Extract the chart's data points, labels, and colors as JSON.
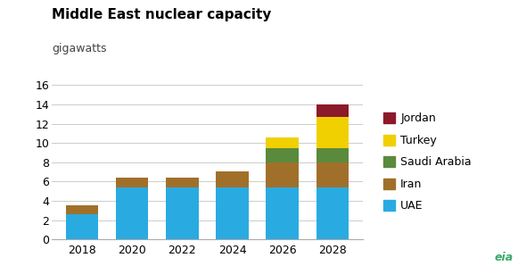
{
  "title": "Middle East nuclear capacity",
  "subtitle": "gigawatts",
  "years": [
    2018,
    2020,
    2022,
    2024,
    2026,
    2028
  ],
  "series": {
    "UAE": [
      2.6,
      5.4,
      5.4,
      5.4,
      5.4,
      5.4
    ],
    "Iran": [
      0.9,
      1.0,
      1.0,
      1.7,
      2.6,
      2.6
    ],
    "Saudi Arabia": [
      0.0,
      0.0,
      0.0,
      0.0,
      1.5,
      1.5
    ],
    "Turkey": [
      0.0,
      0.0,
      0.0,
      0.0,
      1.1,
      3.2
    ],
    "Jordan": [
      0.0,
      0.0,
      0.0,
      0.0,
      0.0,
      1.3
    ]
  },
  "colors": {
    "UAE": "#29abe2",
    "Iran": "#a0702a",
    "Saudi Arabia": "#5a8a3c",
    "Turkey": "#f0d000",
    "Jordan": "#8b1a2a"
  },
  "ylim": [
    0,
    16
  ],
  "yticks": [
    0,
    2,
    4,
    6,
    8,
    10,
    12,
    14,
    16
  ],
  "legend_order": [
    "Jordan",
    "Turkey",
    "Saudi Arabia",
    "Iran",
    "UAE"
  ],
  "background_color": "#ffffff",
  "title_fontsize": 11,
  "subtitle_fontsize": 9,
  "tick_fontsize": 9,
  "legend_fontsize": 9,
  "bar_width": 0.65,
  "eia_color": "#3aaa6e"
}
